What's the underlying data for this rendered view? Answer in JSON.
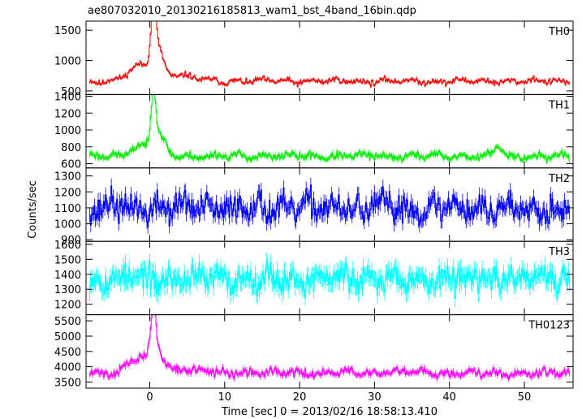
{
  "chart_data": {
    "type": "line",
    "title": "ae807032010_20130216185813_wam1_bst_4band_16bin.qdp",
    "xlabel": "Time [sec] 0 = 2013/02/16 18:58:13.410",
    "ylabel": "Counts/sec",
    "xlim": [
      -8.5,
      56.5
    ],
    "x_ticks": [
      0,
      10,
      20,
      30,
      40,
      50
    ],
    "x_tick_labels": [
      "0",
      "10",
      "20",
      "30",
      "40",
      "50"
    ],
    "x_start": -8.0,
    "x_step": 0.125,
    "n_points": 513,
    "grid": false,
    "panels": [
      {
        "name": "TH0",
        "color": "#ff0000",
        "ylim": [
          440,
          1650
        ],
        "y_ticks": [
          500,
          1000,
          1500
        ],
        "y_tick_labels": [
          "500",
          "1000",
          "1500"
        ],
        "baseline": 660,
        "noise": 40,
        "error": 25,
        "wave": 25,
        "seed": 11,
        "features": [
          {
            "center": -1.2,
            "width": 1.6,
            "amp": 230
          },
          {
            "center": 0.5,
            "width": 0.35,
            "amp": 820
          },
          {
            "center": 1.1,
            "width": 0.7,
            "amp": 380
          },
          {
            "center": 3.0,
            "width": 2.5,
            "amp": 100
          }
        ]
      },
      {
        "name": "TH1",
        "color": "#00ee00",
        "ylim": [
          550,
          1420
        ],
        "y_ticks": [
          600,
          800,
          1000,
          1200,
          1400
        ],
        "y_tick_labels": [
          "600",
          "800",
          "1000",
          "1200",
          "1400"
        ],
        "baseline": 690,
        "noise": 35,
        "error": 30,
        "wave": 20,
        "seed": 23,
        "features": [
          {
            "center": -1.0,
            "width": 1.5,
            "amp": 120
          },
          {
            "center": 0.5,
            "width": 0.3,
            "amp": 620
          },
          {
            "center": 1.2,
            "width": 0.8,
            "amp": 220
          },
          {
            "center": 46.5,
            "width": 0.5,
            "amp": 110
          }
        ]
      },
      {
        "name": "TH2",
        "color": "#0000ff",
        "ylim": [
          890,
          1350
        ],
        "y_ticks": [
          900,
          1000,
          1100,
          1200,
          1300
        ],
        "y_tick_labels": [
          "900",
          "1000",
          "1100",
          "1200",
          "1300"
        ],
        "baseline": 1100,
        "noise": 75,
        "error": 45,
        "wave": 30,
        "seed": 37,
        "features": []
      },
      {
        "name": "TH3",
        "color": "#00ffff",
        "ylim": [
          1130,
          1620
        ],
        "y_ticks": [
          1200,
          1300,
          1400,
          1500,
          1600
        ],
        "y_tick_labels": [
          "1200",
          "1300",
          "1400",
          "1500",
          "1600"
        ],
        "baseline": 1370,
        "noise": 70,
        "error": 55,
        "wave": 30,
        "seed": 53,
        "features": []
      },
      {
        "name": "TH0123",
        "color": "#ff00ff",
        "ylim": [
          3300,
          5700
        ],
        "y_ticks": [
          3500,
          4000,
          4500,
          5000,
          5500
        ],
        "y_tick_labels": [
          "3500",
          "4000",
          "4500",
          "5000",
          "5500"
        ],
        "baseline": 3800,
        "noise": 110,
        "error": 90,
        "wave": 60,
        "seed": 71,
        "features": [
          {
            "center": -1.2,
            "width": 1.6,
            "amp": 450
          },
          {
            "center": 0.5,
            "width": 0.35,
            "amp": 1450
          },
          {
            "center": 1.1,
            "width": 0.7,
            "amp": 450
          },
          {
            "center": 3.0,
            "width": 2.5,
            "amp": 150
          }
        ]
      }
    ]
  }
}
